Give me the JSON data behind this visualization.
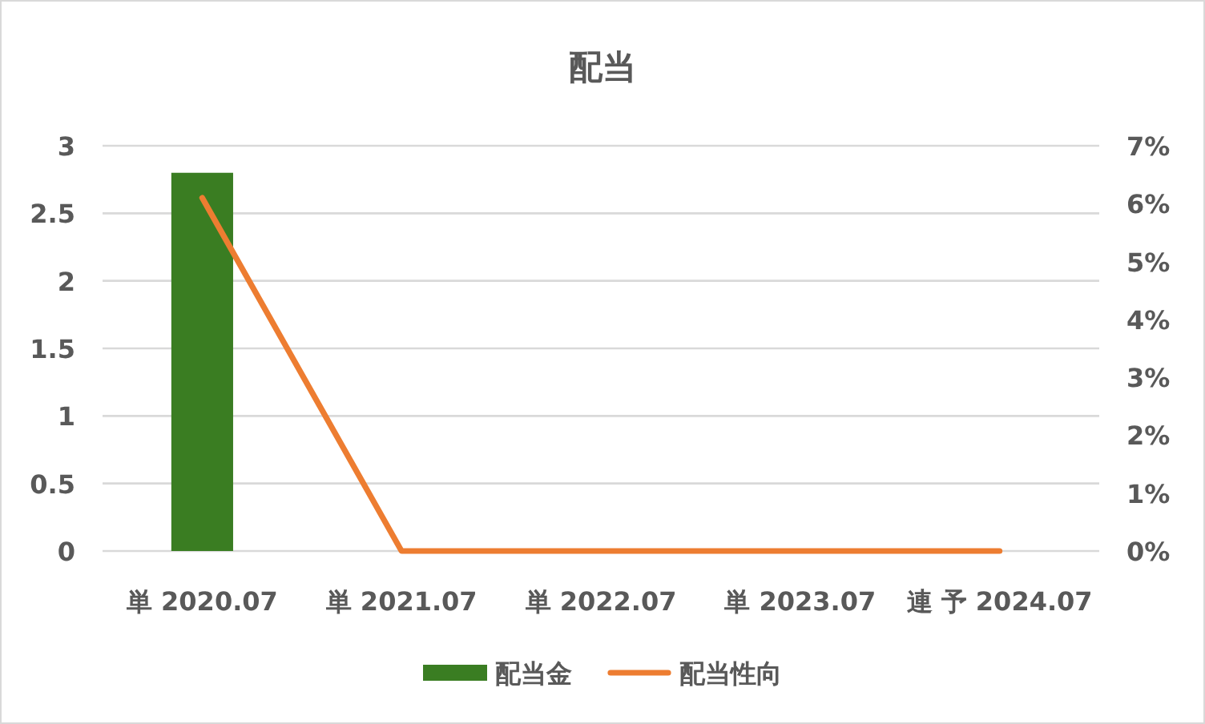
{
  "chart_data": {
    "type": "bar",
    "title": "配当",
    "categories": [
      "単 2020.07",
      "単 2021.07",
      "単 2022.07",
      "単 2023.07",
      "連 予 2024.07"
    ],
    "series": [
      {
        "name": "配当金",
        "color": "#3a7d22",
        "values": [
          2.8,
          null,
          null,
          null,
          null
        ]
      },
      {
        "name": "配当性向",
        "type": "line",
        "axis": "y2",
        "color": "#ed7d31",
        "values": [
          6.1,
          0,
          0,
          0,
          0
        ]
      }
    ],
    "ylim": [
      0,
      3
    ],
    "yticks": [
      0,
      0.5,
      1,
      1.5,
      2,
      2.5,
      3
    ],
    "y2lim": [
      0,
      7
    ],
    "y2ticks": [
      {
        "value": 0,
        "label": "0%"
      },
      {
        "value": 1,
        "label": "1%"
      },
      {
        "value": 2,
        "label": "2%"
      },
      {
        "value": 3,
        "label": "3%"
      },
      {
        "value": 4,
        "label": "4%"
      },
      {
        "value": 5,
        "label": "5%"
      },
      {
        "value": 6,
        "label": "6%"
      },
      {
        "value": 7,
        "label": "7%"
      }
    ],
    "grid": "y",
    "legend": "bottom"
  }
}
